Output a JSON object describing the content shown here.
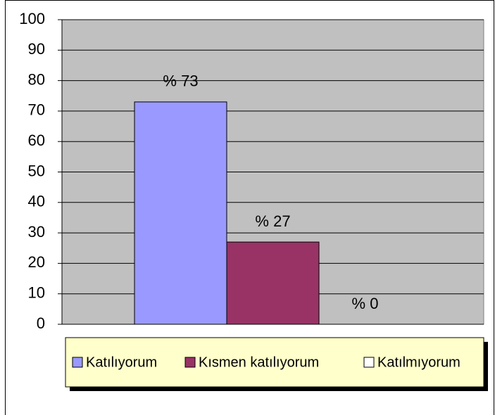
{
  "chart_data": {
    "type": "bar",
    "categories": [
      null
    ],
    "series": [
      {
        "name": "Katılıyorum",
        "color": "#9999ff",
        "values": [
          73
        ],
        "value_labels": [
          "% 73"
        ]
      },
      {
        "name": "Kısmen katılıyorum",
        "color": "#993366",
        "values": [
          27
        ],
        "value_labels": [
          "% 27"
        ]
      },
      {
        "name": "Katılmıyorum",
        "color": "#ffffff",
        "values": [
          0
        ],
        "value_labels": [
          "% 0"
        ]
      }
    ],
    "ylim": [
      0,
      100
    ],
    "yticks": [
      0,
      10,
      20,
      30,
      40,
      50,
      60,
      70,
      80,
      90,
      100
    ],
    "grid": true,
    "legend": "bottom",
    "plot_background": "#c0c0c0"
  }
}
